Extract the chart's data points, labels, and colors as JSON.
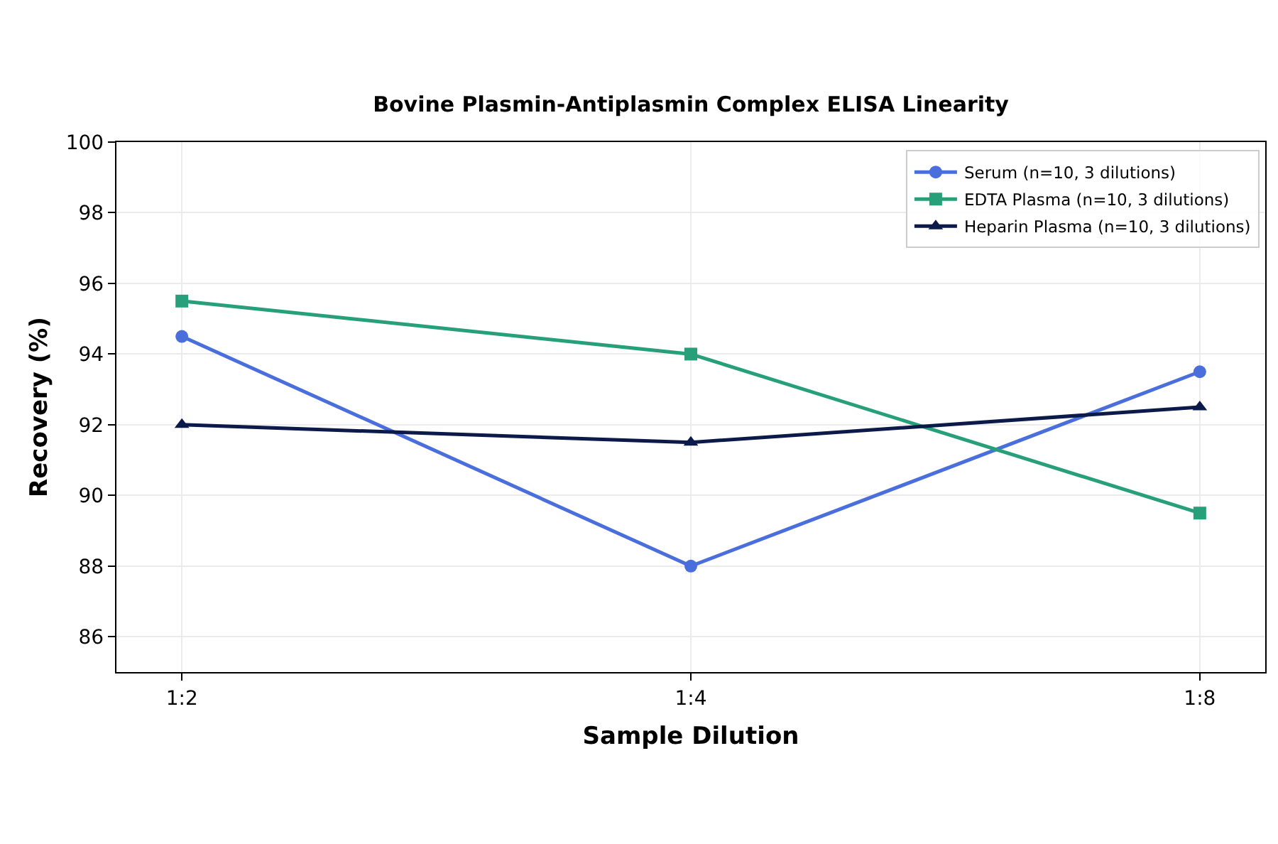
{
  "chart_data": {
    "type": "line",
    "title": "Bovine Plasmin-Antiplasmin Complex ELISA Linearity",
    "xlabel": "Sample Dilution",
    "ylabel": "Recovery (%)",
    "categories": [
      "1:2",
      "1:4",
      "1:8"
    ],
    "series": [
      {
        "name": "Serum (n=10, 3 dilutions)",
        "color": "#4a6fdc",
        "marker": "circle",
        "values": [
          94.5,
          88,
          93.5
        ]
      },
      {
        "name": "EDTA Plasma (n=10, 3 dilutions)",
        "color": "#27a079",
        "marker": "square",
        "values": [
          95.5,
          94,
          89.5
        ]
      },
      {
        "name": "Heparin Plasma (n=10, 3 dilutions)",
        "color": "#0c1a4a",
        "marker": "triangle",
        "values": [
          92,
          91.5,
          92.5
        ]
      }
    ],
    "ylim": [
      85,
      100
    ],
    "yticks": [
      86,
      88,
      90,
      92,
      94,
      96,
      98,
      100
    ],
    "grid": true,
    "legend": "top right",
    "line_style": "solid"
  }
}
